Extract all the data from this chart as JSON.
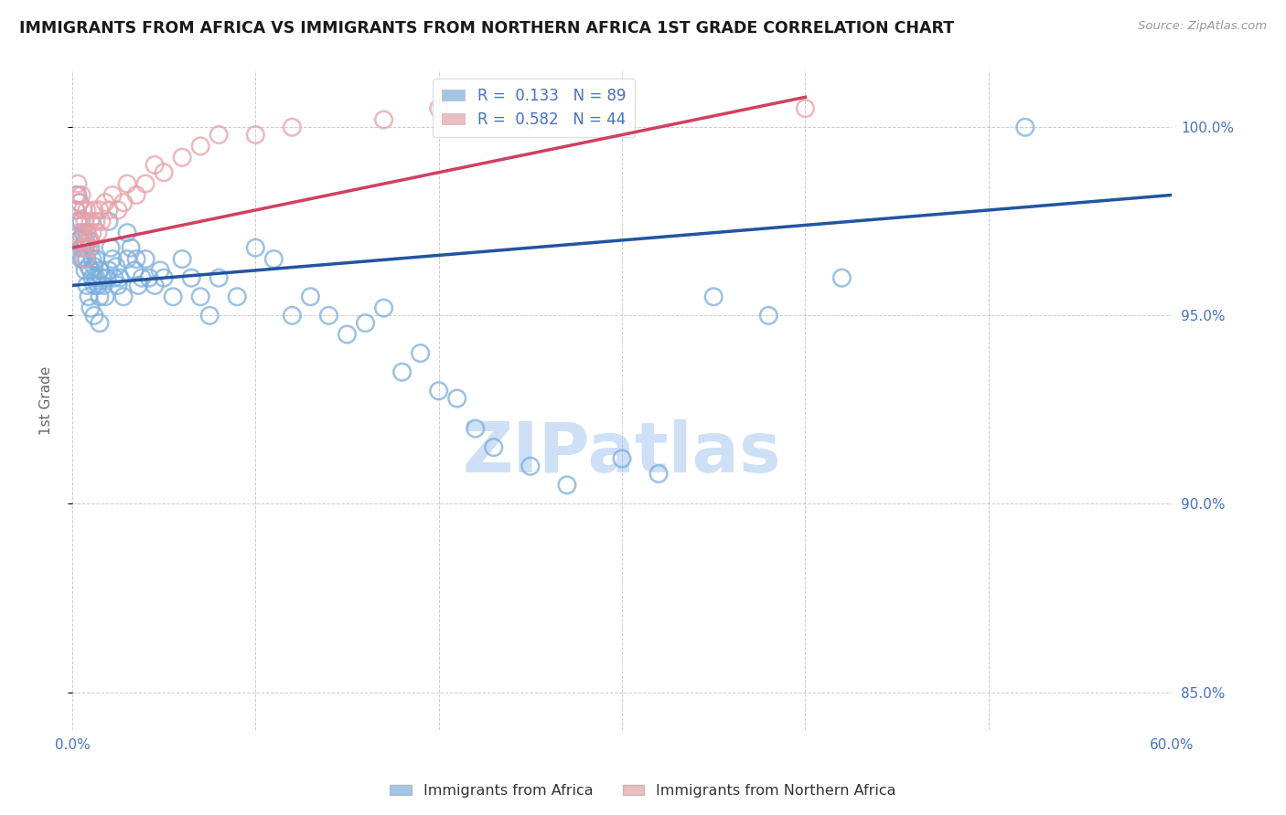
{
  "title": "IMMIGRANTS FROM AFRICA VS IMMIGRANTS FROM NORTHERN AFRICA 1ST GRADE CORRELATION CHART",
  "source_text": "Source: ZipAtlas.com",
  "ylabel": "1st Grade",
  "blue_color": "#7aaedc",
  "pink_color": "#e8a0a8",
  "blue_line_color": "#2255a0",
  "pink_line_color": "#d04060",
  "axis_label_color": "#4472c4",
  "title_color": "#1a1a1a",
  "grid_color": "#aaaaaa",
  "background_color": "#ffffff",
  "watermark_color": "#cde0f5",
  "xlim": [
    0.0,
    60.0
  ],
  "ylim": [
    84.0,
    101.5
  ],
  "yticks": [
    85.0,
    90.0,
    95.0,
    100.0
  ],
  "ytick_labels": [
    "85.0%",
    "90.0%",
    "95.0%",
    "100.0%"
  ],
  "blue_scatter_x": [
    0.2,
    0.3,
    0.3,
    0.4,
    0.4,
    0.5,
    0.5,
    0.6,
    0.6,
    0.7,
    0.7,
    0.8,
    0.8,
    0.9,
    0.9,
    1.0,
    1.0,
    1.1,
    1.1,
    1.2,
    1.2,
    1.3,
    1.3,
    1.4,
    1.5,
    1.5,
    1.6,
    1.7,
    1.8,
    1.9,
    2.0,
    2.0,
    2.1,
    2.2,
    2.3,
    2.4,
    2.5,
    2.6,
    2.8,
    3.0,
    3.0,
    3.2,
    3.4,
    3.5,
    3.6,
    3.8,
    4.0,
    4.2,
    4.5,
    4.8,
    5.0,
    5.5,
    6.0,
    6.5,
    7.0,
    7.5,
    8.0,
    9.0,
    10.0,
    11.0,
    12.0,
    13.0,
    14.0,
    15.0,
    16.0,
    17.0,
    18.0,
    19.0,
    20.0,
    21.0,
    22.0,
    23.0,
    25.0,
    27.0,
    30.0,
    32.0,
    35.0,
    38.0,
    42.0,
    52.0,
    0.4,
    0.5,
    0.6,
    0.7,
    0.8,
    0.9,
    1.0,
    1.2,
    1.5
  ],
  "blue_scatter_y": [
    97.8,
    98.2,
    97.5,
    97.0,
    98.0,
    97.5,
    96.8,
    97.2,
    96.5,
    97.0,
    96.8,
    96.5,
    97.2,
    96.3,
    97.0,
    96.2,
    96.8,
    96.0,
    96.5,
    95.8,
    96.3,
    96.0,
    96.5,
    95.8,
    96.2,
    95.5,
    96.0,
    95.8,
    95.5,
    96.0,
    97.5,
    96.2,
    96.8,
    96.5,
    96.0,
    96.3,
    95.8,
    96.0,
    95.5,
    97.2,
    96.5,
    96.8,
    96.2,
    96.5,
    95.8,
    96.0,
    96.5,
    96.0,
    95.8,
    96.2,
    96.0,
    95.5,
    96.5,
    96.0,
    95.5,
    95.0,
    96.0,
    95.5,
    96.8,
    96.5,
    95.0,
    95.5,
    95.0,
    94.5,
    94.8,
    95.2,
    93.5,
    94.0,
    93.0,
    92.8,
    92.0,
    91.5,
    91.0,
    90.5,
    91.2,
    90.8,
    95.5,
    95.0,
    96.0,
    100.0,
    97.0,
    96.5,
    96.8,
    96.2,
    95.8,
    95.5,
    95.2,
    95.0,
    94.8
  ],
  "pink_scatter_x": [
    0.2,
    0.2,
    0.3,
    0.3,
    0.4,
    0.4,
    0.5,
    0.5,
    0.6,
    0.6,
    0.7,
    0.7,
    0.8,
    0.8,
    0.9,
    0.9,
    1.0,
    1.0,
    1.1,
    1.2,
    1.3,
    1.4,
    1.5,
    1.6,
    1.8,
    2.0,
    2.2,
    2.5,
    2.8,
    3.0,
    3.5,
    4.0,
    4.5,
    5.0,
    6.0,
    7.0,
    8.0,
    10.0,
    12.0,
    17.0,
    20.0,
    25.0,
    30.0,
    40.0
  ],
  "pink_scatter_y": [
    98.2,
    97.8,
    98.5,
    97.5,
    98.0,
    97.2,
    98.2,
    97.0,
    97.8,
    96.8,
    97.5,
    96.5,
    97.2,
    97.8,
    97.0,
    96.8,
    97.5,
    97.0,
    97.2,
    97.8,
    97.5,
    97.2,
    97.8,
    97.5,
    98.0,
    97.8,
    98.2,
    97.8,
    98.0,
    98.5,
    98.2,
    98.5,
    99.0,
    98.8,
    99.2,
    99.5,
    99.8,
    99.8,
    100.0,
    100.2,
    100.5,
    100.2,
    100.0,
    100.5
  ],
  "blue_trendline_x": [
    0.0,
    60.0
  ],
  "blue_trendline_y": [
    95.8,
    98.2
  ],
  "pink_trendline_x": [
    0.0,
    40.0
  ],
  "pink_trendline_y": [
    96.8,
    100.8
  ]
}
